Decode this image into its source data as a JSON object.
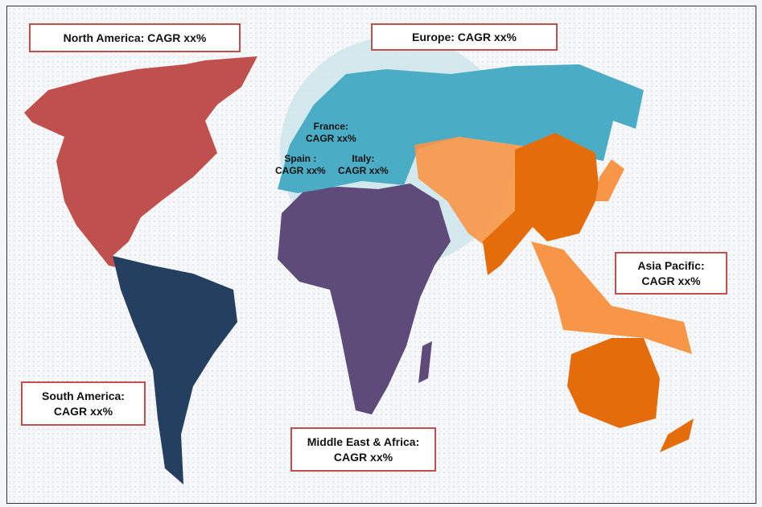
{
  "colors": {
    "north_america": "#c0504d",
    "south_america": "#243f60",
    "middle_east_africa": "#5f4b7a",
    "europe": "#4bacc6",
    "asia_light": "#f79646",
    "asia_dark": "#e46c0a",
    "highlight": "#cde6ec",
    "label_border": "#c0504d"
  },
  "regions": {
    "north_america": "North America: CAGR xx%",
    "europe": "Europe: CAGR xx%",
    "asia_pacific": {
      "line1": "Asia Pacific:",
      "line2": "CAGR xx%"
    },
    "south_america": {
      "line1": "South America:",
      "line2": "CAGR xx%"
    },
    "middle_east_africa": {
      "line1": "Middle East & Africa:",
      "line2": "CAGR xx%"
    }
  },
  "countries": {
    "france": {
      "line1": "France:",
      "line2": "CAGR  xx%"
    },
    "spain": {
      "line1": "Spain :",
      "line2": "CAGR  xx%"
    },
    "italy": {
      "line1": "Italy:",
      "line2": "CAGR  xx%"
    }
  }
}
